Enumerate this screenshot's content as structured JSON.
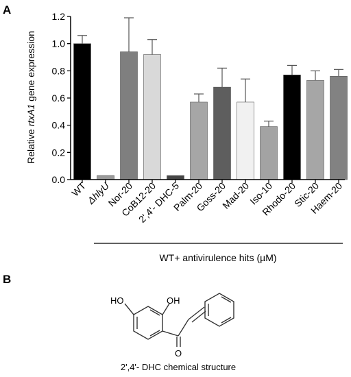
{
  "panels": {
    "a": "A",
    "b": "B"
  },
  "chart_data": {
    "type": "bar",
    "ylabel_parts": [
      "Relative ",
      "rtxA1",
      " gene expression"
    ],
    "ylim": [
      0,
      1.2
    ],
    "yticks": [
      "0.0",
      "0.2",
      "0.4",
      "0.6",
      "0.8",
      "1.0",
      "1.2"
    ],
    "categories": [
      "WT",
      "ΔhlyU",
      "Nor-20",
      "CoB12-20",
      "2',4'- DHC-5",
      "Palm-20",
      "Goss-20",
      "Mad-20",
      "Iso-10",
      "Rhodo-20",
      "Stic-20",
      "Haem-20"
    ],
    "values": [
      1.0,
      0.03,
      0.94,
      0.92,
      0.03,
      0.57,
      0.68,
      0.57,
      0.39,
      0.77,
      0.73,
      0.76
    ],
    "errors": [
      0.06,
      0.005,
      0.25,
      0.11,
      0.005,
      0.06,
      0.14,
      0.17,
      0.04,
      0.07,
      0.07,
      0.05
    ],
    "colors": [
      "#000000",
      "#9a9a9a",
      "#7f7f7f",
      "#d9d9d9",
      "#454545",
      "#a6a6a6",
      "#5e5e5e",
      "#f1f1f1",
      "#a3a3a3",
      "#000000",
      "#a6a6a6",
      "#828282"
    ],
    "group_label": "WT+ antivirulence hits (µM)",
    "grid": false,
    "legend": "none"
  },
  "structure": {
    "atoms": {
      "ho": "HO",
      "oh": "OH",
      "o": "O"
    },
    "caption": "2',4'- DHC chemical structure"
  }
}
